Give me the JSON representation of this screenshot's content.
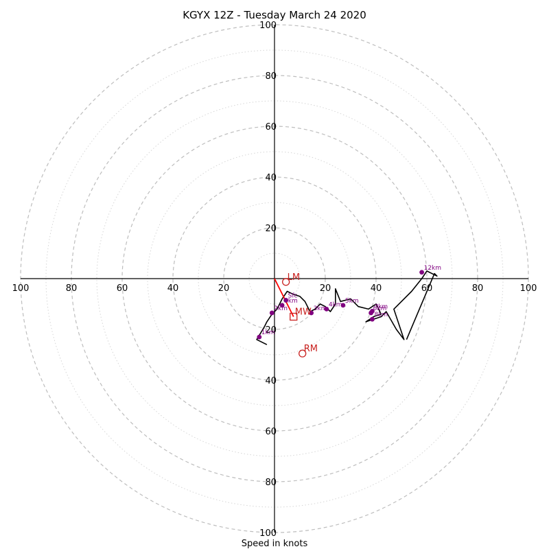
{
  "title": "KGYX 12Z - Tuesday March 24 2020",
  "chart_data": {
    "type": "scatter",
    "subtype": "hodograph",
    "title": "KGYX 12Z - Tuesday March 24 2020",
    "xlabel": "Speed in knots",
    "xlim": [
      -100,
      100
    ],
    "ylim": [
      -100,
      100
    ],
    "rings_major": [
      20,
      40,
      60,
      80,
      100
    ],
    "rings_minor": [
      10,
      30,
      50,
      70,
      90
    ],
    "x_ticks": [
      -100,
      -80,
      -60,
      -40,
      -20,
      20,
      40,
      60,
      80,
      100
    ],
    "y_ticks": [
      -100,
      -80,
      -60,
      -40,
      -20,
      20,
      40,
      60,
      80,
      100
    ],
    "tick_labels": [
      "100",
      "80",
      "60",
      "40",
      "20",
      "20",
      "40",
      "60",
      "80",
      "100"
    ],
    "hodograph": {
      "u": [
        -3,
        -7,
        -4,
        -3,
        -1,
        1,
        3,
        5,
        7,
        10,
        12,
        14,
        16,
        18,
        20,
        22,
        24,
        24,
        26,
        30,
        33,
        37,
        40,
        42,
        39,
        36,
        42,
        44,
        48,
        51,
        47,
        54,
        58,
        60,
        64,
        63,
        52
      ],
      "v": [
        -26,
        -24,
        -19,
        -17,
        -14,
        -12,
        -8,
        -5,
        -6,
        -7,
        -9,
        -13,
        -12,
        -10,
        -11,
        -13,
        -10,
        -4,
        -9,
        -8,
        -11,
        -12,
        -10,
        -14,
        -15,
        -17,
        -15,
        -13,
        -20,
        -24,
        -12,
        -5,
        0,
        3,
        1,
        2,
        -24
      ]
    },
    "height_markers": [
      {
        "label": "1km",
        "u": -6,
        "v": -23
      },
      {
        "label": "2km",
        "u": -1,
        "v": -13.5
      },
      {
        "label": "3km",
        "u": 3,
        "v": -10.5
      },
      {
        "label": "Sfc",
        "u": 4.5,
        "v": -8.5
      },
      {
        "label": "3km",
        "u": 14.5,
        "v": -13.5
      },
      {
        "label": "4km",
        "u": 20.5,
        "v": -12
      },
      {
        "label": "5km",
        "u": 27,
        "v": -10.5
      },
      {
        "label": "6km",
        "u": 38,
        "v": -13.5
      },
      {
        "label": "7km",
        "u": 38.5,
        "v": -12.8
      },
      {
        "label": "8km",
        "u": 38.5,
        "v": -16
      },
      {
        "label": "12km",
        "u": 58,
        "v": 2.5
      }
    ],
    "storm_motion": [
      {
        "label": "LM",
        "u": 4.5,
        "v": -1.3,
        "marker": "circle"
      },
      {
        "label": "MW",
        "u": 7.5,
        "v": -15,
        "marker": "square"
      },
      {
        "label": "RM",
        "u": 11,
        "v": -29.5,
        "marker": "circle"
      }
    ],
    "mean_wind_vector": {
      "u": 7.5,
      "v": -15,
      "color": "#ff0000"
    },
    "colors": {
      "hodograph": "#000000",
      "height_markers": "#800080",
      "storm_motion": "#c8201e",
      "rings": "#bdbdbd"
    }
  }
}
